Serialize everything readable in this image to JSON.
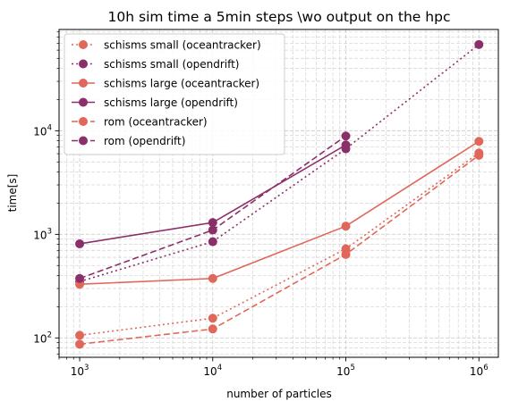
{
  "chart_data": {
    "type": "line",
    "title": "10h sim time a 5min steps \\wo output on the hpc",
    "xlabel": "number of particles",
    "ylabel": "time[s]",
    "xscale": "log",
    "yscale": "log",
    "xlim": [
      700,
      1400000
    ],
    "ylim": [
      65,
      95000
    ],
    "grid": true,
    "grid_minor": true,
    "legend_position": "top-left",
    "x_ticks": [
      {
        "value": 1000,
        "base": "10",
        "exp": "3"
      },
      {
        "value": 10000,
        "base": "10",
        "exp": "4"
      },
      {
        "value": 100000,
        "base": "10",
        "exp": "5"
      },
      {
        "value": 1000000,
        "base": "10",
        "exp": "6"
      }
    ],
    "y_ticks": [
      {
        "value": 100,
        "base": "10",
        "exp": "2"
      },
      {
        "value": 1000,
        "base": "10",
        "exp": "3"
      },
      {
        "value": 10000,
        "base": "10",
        "exp": "4"
      }
    ],
    "series": [
      {
        "name": "schisms small (oceantracker)",
        "color": "#e0675a",
        "style": "dotted",
        "x": [
          1000,
          10000,
          100000,
          1000000
        ],
        "y": [
          106,
          155,
          725,
          6100
        ]
      },
      {
        "name": "schisms small (opendrift)",
        "color": "#8b2f6b",
        "style": "dotted",
        "x": [
          1000,
          10000,
          100000,
          1000000
        ],
        "y": [
          350,
          850,
          6700,
          68000
        ]
      },
      {
        "name": "schisms large (oceantracker)",
        "color": "#e0675a",
        "style": "solid",
        "x": [
          1000,
          10000,
          100000,
          1000000
        ],
        "y": [
          330,
          375,
          1200,
          7900
        ]
      },
      {
        "name": "schisms large (opendrift)",
        "color": "#8b2f6b",
        "style": "solid",
        "x": [
          1000,
          10000,
          100000
        ],
        "y": [
          810,
          1300,
          7300
        ]
      },
      {
        "name": "rom (oceantracker)",
        "color": "#e0675a",
        "style": "dashed",
        "x": [
          1000,
          10000,
          100000,
          1000000
        ],
        "y": [
          87,
          122,
          640,
          5800
        ]
      },
      {
        "name": "rom (opendrift)",
        "color": "#8b2f6b",
        "style": "dashed",
        "x": [
          1000,
          10000,
          100000
        ],
        "y": [
          375,
          1100,
          8900
        ]
      }
    ]
  }
}
